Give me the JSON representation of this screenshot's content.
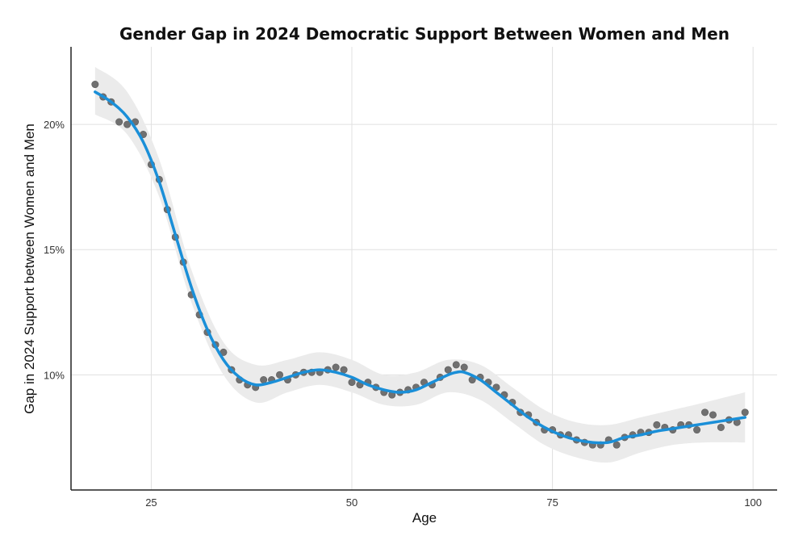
{
  "chart_data": {
    "type": "scatter",
    "title": "Gender Gap in 2024 Democratic Support Between Women and Men",
    "xlabel": "Age",
    "ylabel": "Gap in 2024 Support between Women and Men",
    "xlim": [
      15,
      103
    ],
    "ylim": [
      5.4,
      23.1
    ],
    "x_ticks": [
      25,
      50,
      75,
      100
    ],
    "x_tick_labels": [
      "25",
      "50",
      "75",
      "100"
    ],
    "y_ticks": [
      10,
      15,
      20
    ],
    "y_tick_labels": [
      "10%",
      "15%",
      "20%"
    ],
    "grid": true,
    "colors": {
      "points": "#707070",
      "smooth": "#1a8fd8",
      "band": "#ebebeb",
      "grid": "#e0e0e0"
    },
    "points": [
      [
        18,
        21.6
      ],
      [
        19,
        21.1
      ],
      [
        20,
        20.9
      ],
      [
        21,
        20.1
      ],
      [
        22,
        20.0
      ],
      [
        23,
        20.1
      ],
      [
        24,
        19.6
      ],
      [
        25,
        18.4
      ],
      [
        26,
        17.8
      ],
      [
        27,
        16.6
      ],
      [
        28,
        15.5
      ],
      [
        29,
        14.5
      ],
      [
        30,
        13.2
      ],
      [
        31,
        12.4
      ],
      [
        32,
        11.7
      ],
      [
        33,
        11.2
      ],
      [
        34,
        10.9
      ],
      [
        35,
        10.2
      ],
      [
        36,
        9.8
      ],
      [
        37,
        9.6
      ],
      [
        38,
        9.5
      ],
      [
        39,
        9.8
      ],
      [
        40,
        9.8
      ],
      [
        41,
        10.0
      ],
      [
        42,
        9.8
      ],
      [
        43,
        10.0
      ],
      [
        44,
        10.1
      ],
      [
        45,
        10.1
      ],
      [
        46,
        10.1
      ],
      [
        47,
        10.2
      ],
      [
        48,
        10.3
      ],
      [
        49,
        10.2
      ],
      [
        50,
        9.7
      ],
      [
        51,
        9.6
      ],
      [
        52,
        9.7
      ],
      [
        53,
        9.5
      ],
      [
        54,
        9.3
      ],
      [
        55,
        9.2
      ],
      [
        56,
        9.3
      ],
      [
        57,
        9.4
      ],
      [
        58,
        9.5
      ],
      [
        59,
        9.7
      ],
      [
        60,
        9.6
      ],
      [
        61,
        9.9
      ],
      [
        62,
        10.2
      ],
      [
        63,
        10.4
      ],
      [
        64,
        10.3
      ],
      [
        65,
        9.8
      ],
      [
        66,
        9.9
      ],
      [
        67,
        9.7
      ],
      [
        68,
        9.5
      ],
      [
        69,
        9.2
      ],
      [
        70,
        8.9
      ],
      [
        71,
        8.5
      ],
      [
        72,
        8.4
      ],
      [
        73,
        8.1
      ],
      [
        74,
        7.8
      ],
      [
        75,
        7.8
      ],
      [
        76,
        7.6
      ],
      [
        77,
        7.6
      ],
      [
        78,
        7.4
      ],
      [
        79,
        7.3
      ],
      [
        80,
        7.2
      ],
      [
        81,
        7.2
      ],
      [
        82,
        7.4
      ],
      [
        83,
        7.2
      ],
      [
        84,
        7.5
      ],
      [
        85,
        7.6
      ],
      [
        86,
        7.7
      ],
      [
        87,
        7.7
      ],
      [
        88,
        8.0
      ],
      [
        89,
        7.9
      ],
      [
        90,
        7.8
      ],
      [
        91,
        8.0
      ],
      [
        92,
        8.0
      ],
      [
        93,
        7.8
      ],
      [
        94,
        8.5
      ],
      [
        95,
        8.4
      ],
      [
        96,
        7.9
      ],
      [
        97,
        8.2
      ],
      [
        98,
        8.1
      ],
      [
        99,
        8.5
      ]
    ],
    "smooth_line": [
      [
        18,
        21.3
      ],
      [
        20,
        20.9
      ],
      [
        22,
        20.3
      ],
      [
        24,
        19.3
      ],
      [
        26,
        17.7
      ],
      [
        28,
        15.6
      ],
      [
        30,
        13.5
      ],
      [
        32,
        11.8
      ],
      [
        34,
        10.6
      ],
      [
        36,
        9.9
      ],
      [
        38,
        9.6
      ],
      [
        40,
        9.7
      ],
      [
        42,
        9.9
      ],
      [
        44,
        10.1
      ],
      [
        46,
        10.2
      ],
      [
        48,
        10.1
      ],
      [
        50,
        9.9
      ],
      [
        52,
        9.6
      ],
      [
        54,
        9.4
      ],
      [
        56,
        9.3
      ],
      [
        58,
        9.4
      ],
      [
        60,
        9.7
      ],
      [
        62,
        10.0
      ],
      [
        63,
        10.1
      ],
      [
        64,
        10.1
      ],
      [
        66,
        9.8
      ],
      [
        68,
        9.3
      ],
      [
        70,
        8.8
      ],
      [
        72,
        8.3
      ],
      [
        74,
        7.9
      ],
      [
        76,
        7.6
      ],
      [
        78,
        7.4
      ],
      [
        80,
        7.3
      ],
      [
        82,
        7.3
      ],
      [
        84,
        7.5
      ],
      [
        86,
        7.6
      ],
      [
        88,
        7.75
      ],
      [
        90,
        7.85
      ],
      [
        92,
        7.95
      ],
      [
        94,
        8.05
      ],
      [
        96,
        8.15
      ],
      [
        98,
        8.25
      ],
      [
        99,
        8.3
      ]
    ],
    "confidence_band": [
      [
        18,
        20.4,
        22.3
      ],
      [
        22,
        19.6,
        21.3
      ],
      [
        26,
        17.1,
        18.6
      ],
      [
        30,
        12.9,
        14.2
      ],
      [
        34,
        10.0,
        11.3
      ],
      [
        38,
        8.9,
        10.4
      ],
      [
        42,
        9.3,
        10.6
      ],
      [
        46,
        9.6,
        10.9
      ],
      [
        50,
        9.3,
        10.6
      ],
      [
        54,
        8.8,
        10.0
      ],
      [
        58,
        8.8,
        10.1
      ],
      [
        62,
        9.3,
        10.6
      ],
      [
        66,
        9.0,
        10.4
      ],
      [
        70,
        8.1,
        9.5
      ],
      [
        74,
        7.2,
        8.6
      ],
      [
        78,
        6.7,
        8.1
      ],
      [
        82,
        6.5,
        8.0
      ],
      [
        86,
        6.9,
        8.3
      ],
      [
        90,
        7.2,
        8.6
      ],
      [
        94,
        7.3,
        8.9
      ],
      [
        99,
        7.3,
        9.3
      ]
    ]
  }
}
